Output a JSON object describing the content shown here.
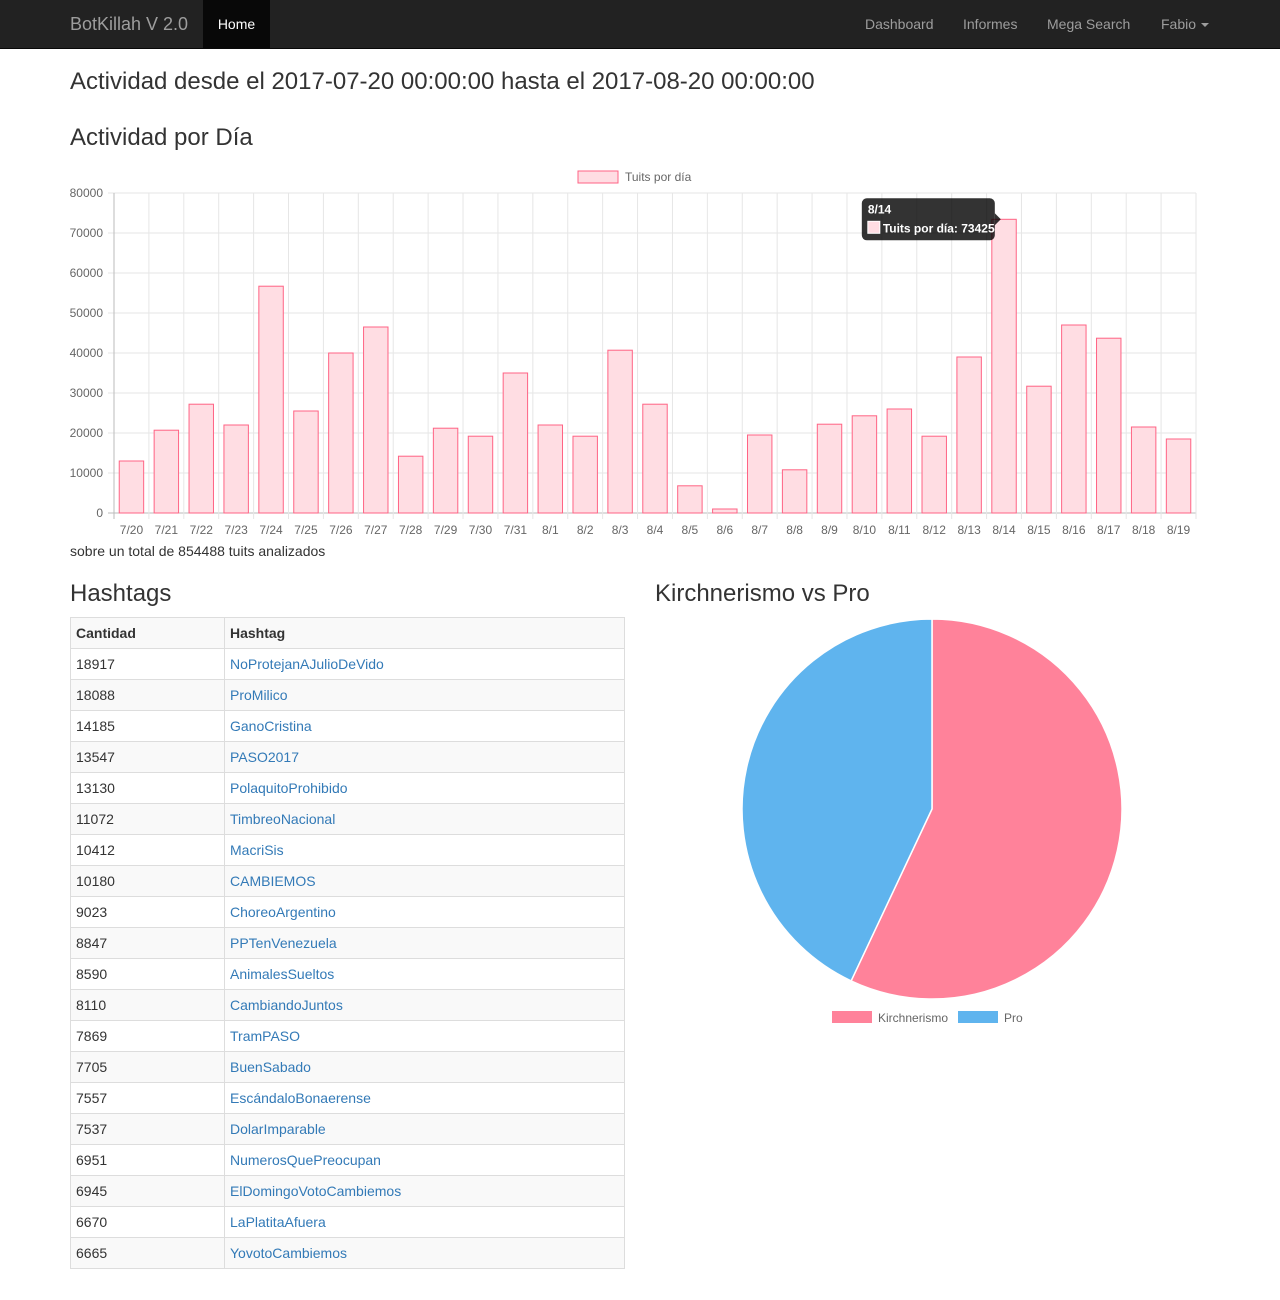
{
  "navbar": {
    "brand": "BotKillah V 2.0",
    "home": "Home",
    "dashboard": "Dashboard",
    "informes": "Informes",
    "mega_search": "Mega Search",
    "user": "Fabio"
  },
  "page": {
    "title": "Actividad desde el 2017-07-20 00:00:00 hasta el 2017-08-20 00:00:00",
    "daily_heading": "Actividad por Día",
    "total_text": "sobre un total de 854488 tuits analizados",
    "hashtags_heading": "Hashtags",
    "pie_heading": "Kirchnerismo vs Pro"
  },
  "colors": {
    "bar_fill": "#ffdde3",
    "bar_stroke": "#ff6384",
    "pie_kirchnerismo": "#ff829a",
    "pie_pro": "#5fb4ee",
    "link": "#337ab7",
    "navbar": "#222222"
  },
  "chart_data": [
    {
      "type": "bar",
      "legend": "Tuits por día",
      "legend_position": "top",
      "grid": true,
      "ylim": [
        0,
        80000
      ],
      "yticks": [
        0,
        10000,
        20000,
        30000,
        40000,
        50000,
        60000,
        70000,
        80000
      ],
      "categories": [
        "7/20",
        "7/21",
        "7/22",
        "7/23",
        "7/24",
        "7/25",
        "7/26",
        "7/27",
        "7/28",
        "7/29",
        "7/30",
        "7/31",
        "8/1",
        "8/2",
        "8/3",
        "8/4",
        "8/5",
        "8/6",
        "8/7",
        "8/8",
        "8/9",
        "8/10",
        "8/11",
        "8/12",
        "8/13",
        "8/14",
        "8/15",
        "8/16",
        "8/17",
        "8/18",
        "8/19"
      ],
      "series": [
        {
          "name": "Tuits por día",
          "values": [
            13000,
            20700,
            27200,
            22000,
            56700,
            25500,
            40000,
            46500,
            14200,
            21200,
            19200,
            35000,
            22000,
            19200,
            40700,
            27200,
            6800,
            1000,
            19500,
            10800,
            22200,
            24300,
            26000,
            19200,
            39000,
            73425,
            31700,
            47000,
            43700,
            21500,
            18500
          ]
        }
      ],
      "tooltip": {
        "title": "8/14",
        "label": "Tuits por día: 73425"
      }
    },
    {
      "type": "pie",
      "legend_position": "bottom",
      "labels": [
        "Kirchnerismo",
        "Pro"
      ],
      "values": [
        57,
        43
      ]
    }
  ],
  "hashtags": {
    "headers": [
      "Cantidad",
      "Hashtag"
    ],
    "rows": [
      {
        "count": "18917",
        "tag": "NoProtejanAJulioDeVido"
      },
      {
        "count": "18088",
        "tag": "ProMilico"
      },
      {
        "count": "14185",
        "tag": "GanoCristina"
      },
      {
        "count": "13547",
        "tag": "PASO2017"
      },
      {
        "count": "13130",
        "tag": "PolaquitoProhibido"
      },
      {
        "count": "11072",
        "tag": "TimbreoNacional"
      },
      {
        "count": "10412",
        "tag": "MacriSis"
      },
      {
        "count": "10180",
        "tag": "CAMBIEMOS"
      },
      {
        "count": "9023",
        "tag": "ChoreoArgentino"
      },
      {
        "count": "8847",
        "tag": "PPTenVenezuela"
      },
      {
        "count": "8590",
        "tag": "AnimalesSueltos"
      },
      {
        "count": "8110",
        "tag": "CambiandoJuntos"
      },
      {
        "count": "7869",
        "tag": "TramPASO"
      },
      {
        "count": "7705",
        "tag": "BuenSabado"
      },
      {
        "count": "7557",
        "tag": "EscándaloBonaerense"
      },
      {
        "count": "7537",
        "tag": "DolarImparable"
      },
      {
        "count": "6951",
        "tag": "NumerosQuePreocupan"
      },
      {
        "count": "6945",
        "tag": "ElDomingoVotoCambiemos"
      },
      {
        "count": "6670",
        "tag": "LaPlatitaAfuera"
      },
      {
        "count": "6665",
        "tag": "YovotoCambiemos"
      }
    ]
  }
}
